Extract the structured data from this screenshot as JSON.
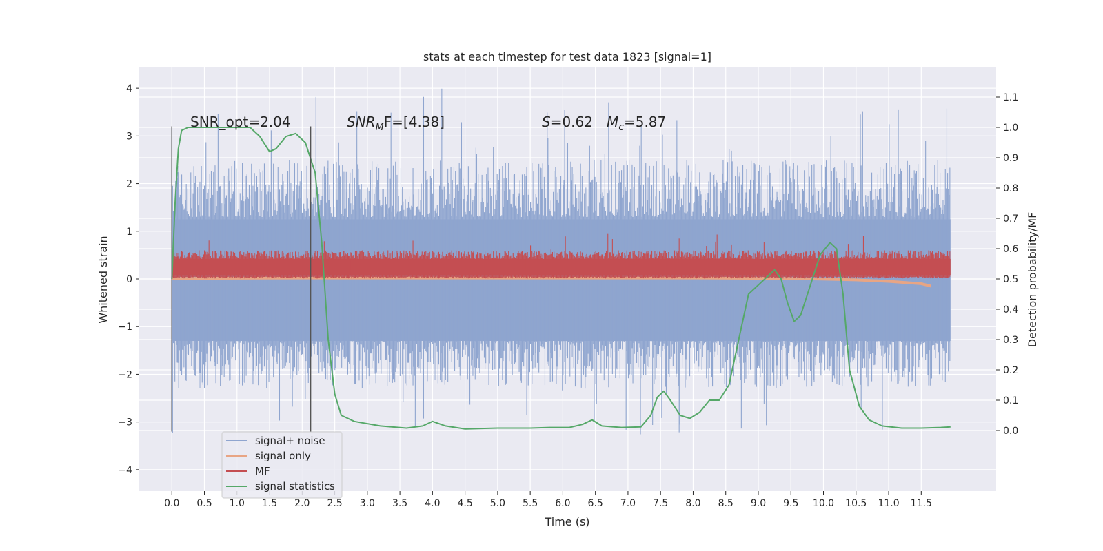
{
  "chart_data": {
    "type": "line",
    "title": "stats at each timestep for test data 1823 [signal=1]",
    "xlabel": "Time (s)",
    "ylabel": "Whitened strain",
    "ylabel_right": "Detection probability/MF",
    "xlim": [
      -0.5,
      12.65
    ],
    "ylim": [
      -4.45,
      4.45
    ],
    "ylim_right": [
      -0.2,
      1.2
    ],
    "x_ticks": [
      "0.0",
      "0.5",
      "1.0",
      "1.5",
      "2.0",
      "2.5",
      "3.0",
      "3.5",
      "4.0",
      "4.5",
      "5.0",
      "5.5",
      "6.0",
      "6.5",
      "7.0",
      "7.5",
      "8.0",
      "8.5",
      "9.0",
      "9.5",
      "10.0",
      "10.5",
      "11.0",
      "11.5"
    ],
    "y_ticks": [
      "4",
      "3",
      "2",
      "1",
      "0",
      "−1",
      "−2",
      "−3",
      "−4"
    ],
    "y_ticks_right": [
      "1.1",
      "1.0",
      "0.9",
      "0.8",
      "0.7",
      "0.6",
      "0.5",
      "0.4",
      "0.3",
      "0.2",
      "0.1",
      "0.0"
    ],
    "grid": true,
    "legend_position": "lower-left",
    "annotations": {
      "snr_opt": "SNR_opt=2.04",
      "snr_mf_sym": "SNR",
      "snr_mf_sub": "M",
      "snr_mf_rest": "F=[4.38]",
      "s_sym": "S",
      "s_rest": "=0.62",
      "mc_sym": "M",
      "mc_sub": "c",
      "mc_rest": "=5.87"
    },
    "vlines_x": [
      0.0,
      2.13
    ],
    "series": [
      {
        "name": "signal+ noise",
        "color": "#8fa5cf",
        "axis": "left",
        "description": "dense noise band approx -2 to +2.3 with spikes",
        "x_range": [
          0.0,
          11.95
        ],
        "band_low": -1.9,
        "band_high": 2.1,
        "spike_high_max": 4.05,
        "spike_low_min": -3.35
      },
      {
        "name": "signal only",
        "color": "#e8a584",
        "axis": "left",
        "x": [
          0.0,
          2.0,
          4.0,
          6.0,
          8.0,
          9.5,
          10.5,
          11.0,
          11.5,
          11.65
        ],
        "y": [
          0.01,
          0.02,
          0.02,
          0.02,
          0.02,
          0.01,
          -0.02,
          -0.05,
          -0.1,
          -0.15
        ]
      },
      {
        "name": "MF",
        "color": "#c44e52",
        "axis": "left",
        "description": "matched-filter band approx 0.05 to 0.55 with peaks to ~1.0",
        "x_range": [
          0.0,
          11.95
        ],
        "band_low": 0.05,
        "band_high": 0.55,
        "peak_max": 1.0
      },
      {
        "name": "signal statistics",
        "color": "#55a868",
        "axis": "right",
        "x": [
          0.0,
          0.05,
          0.1,
          0.15,
          0.25,
          0.4,
          0.6,
          0.9,
          1.2,
          1.35,
          1.5,
          1.6,
          1.75,
          1.9,
          2.05,
          2.2,
          2.3,
          2.4,
          2.5,
          2.6,
          2.8,
          3.2,
          3.6,
          3.85,
          4.0,
          4.2,
          4.5,
          5.0,
          5.5,
          5.8,
          6.1,
          6.3,
          6.45,
          6.6,
          6.9,
          7.2,
          7.35,
          7.45,
          7.55,
          7.65,
          7.8,
          7.95,
          8.1,
          8.25,
          8.4,
          8.55,
          8.7,
          8.85,
          9.0,
          9.15,
          9.25,
          9.35,
          9.45,
          9.55,
          9.65,
          9.8,
          9.95,
          10.1,
          10.2,
          10.3,
          10.4,
          10.55,
          10.7,
          10.9,
          11.2,
          11.5,
          11.8,
          11.95
        ],
        "y": [
          0.5,
          0.75,
          0.93,
          0.99,
          1.0,
          1.0,
          1.0,
          1.0,
          1.0,
          0.97,
          0.92,
          0.93,
          0.97,
          0.98,
          0.95,
          0.85,
          0.62,
          0.3,
          0.12,
          0.05,
          0.03,
          0.015,
          0.008,
          0.015,
          0.03,
          0.015,
          0.005,
          0.008,
          0.008,
          0.01,
          0.01,
          0.02,
          0.035,
          0.015,
          0.01,
          0.012,
          0.05,
          0.11,
          0.13,
          0.1,
          0.05,
          0.04,
          0.06,
          0.1,
          0.1,
          0.15,
          0.3,
          0.45,
          0.48,
          0.51,
          0.53,
          0.5,
          0.42,
          0.36,
          0.38,
          0.48,
          0.58,
          0.62,
          0.6,
          0.45,
          0.2,
          0.08,
          0.035,
          0.015,
          0.008,
          0.008,
          0.01,
          0.012
        ]
      }
    ]
  }
}
